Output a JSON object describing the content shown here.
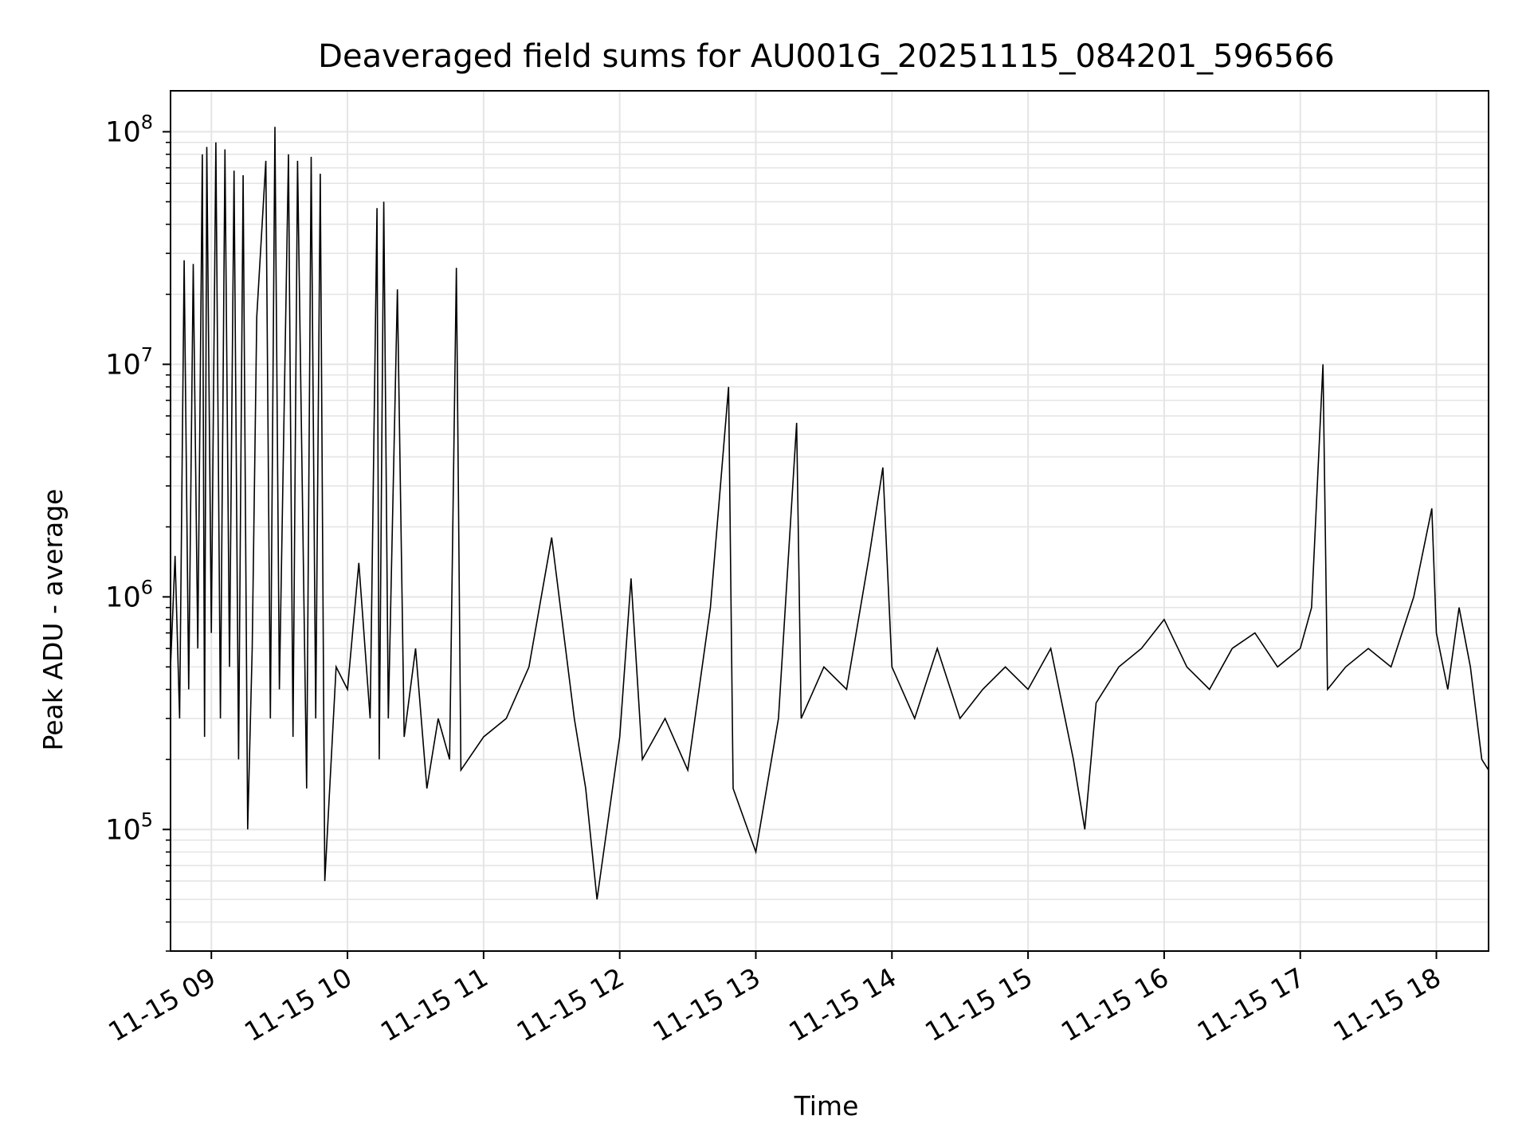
{
  "chart_data": {
    "type": "line",
    "title": "Deaveraged field sums for AU001G_20251115_084201_596566",
    "xlabel": "Time",
    "ylabel": "Peak ADU - average",
    "yscale": "log",
    "ylim": [
      30000,
      150000000
    ],
    "xlim": [
      "2025-11-15 08:42",
      "2025-11-15 18:23"
    ],
    "grid": true,
    "line_color": "#000000",
    "grid_color": "#e5e5e5",
    "x_ticks": [
      {
        "value": "2025-11-15 09:00",
        "label": "11-15 09"
      },
      {
        "value": "2025-11-15 10:00",
        "label": "11-15 10"
      },
      {
        "value": "2025-11-15 11:00",
        "label": "11-15 11"
      },
      {
        "value": "2025-11-15 12:00",
        "label": "11-15 12"
      },
      {
        "value": "2025-11-15 13:00",
        "label": "11-15 13"
      },
      {
        "value": "2025-11-15 14:00",
        "label": "11-15 14"
      },
      {
        "value": "2025-11-15 15:00",
        "label": "11-15 15"
      },
      {
        "value": "2025-11-15 16:00",
        "label": "11-15 16"
      },
      {
        "value": "2025-11-15 17:00",
        "label": "11-15 17"
      },
      {
        "value": "2025-11-15 18:00",
        "label": "11-15 18"
      }
    ],
    "y_ticks": [
      {
        "value": 100000,
        "base": "10",
        "exp": "5"
      },
      {
        "value": 1000000,
        "base": "10",
        "exp": "6"
      },
      {
        "value": 10000000,
        "base": "10",
        "exp": "7"
      },
      {
        "value": 100000000,
        "base": "10",
        "exp": "8"
      }
    ],
    "series": [
      {
        "points": [
          [
            "2025-11-15 08:42",
            500000
          ],
          [
            "2025-11-15 08:44",
            1500000
          ],
          [
            "2025-11-15 08:46",
            300000
          ],
          [
            "2025-11-15 08:48",
            28000000
          ],
          [
            "2025-11-15 08:50",
            400000
          ],
          [
            "2025-11-15 08:52",
            27000000
          ],
          [
            "2025-11-15 08:54",
            600000
          ],
          [
            "2025-11-15 08:56",
            80000000
          ],
          [
            "2025-11-15 08:57",
            250000
          ],
          [
            "2025-11-15 08:58",
            86000000
          ],
          [
            "2025-11-15 09:00",
            700000
          ],
          [
            "2025-11-15 09:02",
            90000000
          ],
          [
            "2025-11-15 09:04",
            300000
          ],
          [
            "2025-11-15 09:06",
            84000000
          ],
          [
            "2025-11-15 09:08",
            500000
          ],
          [
            "2025-11-15 09:10",
            68000000
          ],
          [
            "2025-11-15 09:12",
            200000
          ],
          [
            "2025-11-15 09:14",
            65000000
          ],
          [
            "2025-11-15 09:16",
            100000
          ],
          [
            "2025-11-15 09:18",
            600000
          ],
          [
            "2025-11-15 09:20",
            16000000
          ],
          [
            "2025-11-15 09:24",
            75000000
          ],
          [
            "2025-11-15 09:26",
            300000
          ],
          [
            "2025-11-15 09:28",
            105000000
          ],
          [
            "2025-11-15 09:30",
            400000
          ],
          [
            "2025-11-15 09:34",
            80000000
          ],
          [
            "2025-11-15 09:36",
            250000
          ],
          [
            "2025-11-15 09:38",
            75000000
          ],
          [
            "2025-11-15 09:42",
            150000
          ],
          [
            "2025-11-15 09:44",
            78000000
          ],
          [
            "2025-11-15 09:46",
            300000
          ],
          [
            "2025-11-15 09:48",
            66000000
          ],
          [
            "2025-11-15 09:50",
            60000
          ],
          [
            "2025-11-15 09:55",
            500000
          ],
          [
            "2025-11-15 10:00",
            400000
          ],
          [
            "2025-11-15 10:05",
            1400000
          ],
          [
            "2025-11-15 10:10",
            300000
          ],
          [
            "2025-11-15 10:13",
            47000000
          ],
          [
            "2025-11-15 10:14",
            200000
          ],
          [
            "2025-11-15 10:16",
            50000000
          ],
          [
            "2025-11-15 10:18",
            300000
          ],
          [
            "2025-11-15 10:22",
            21000000
          ],
          [
            "2025-11-15 10:25",
            250000
          ],
          [
            "2025-11-15 10:30",
            600000
          ],
          [
            "2025-11-15 10:35",
            150000
          ],
          [
            "2025-11-15 10:40",
            300000
          ],
          [
            "2025-11-15 10:45",
            200000
          ],
          [
            "2025-11-15 10:48",
            26000000
          ],
          [
            "2025-11-15 10:50",
            180000
          ],
          [
            "2025-11-15 11:00",
            250000
          ],
          [
            "2025-11-15 11:10",
            300000
          ],
          [
            "2025-11-15 11:20",
            500000
          ],
          [
            "2025-11-15 11:30",
            1800000
          ],
          [
            "2025-11-15 11:40",
            300000
          ],
          [
            "2025-11-15 11:45",
            150000
          ],
          [
            "2025-11-15 11:50",
            50000
          ],
          [
            "2025-11-15 12:00",
            250000
          ],
          [
            "2025-11-15 12:05",
            1200000
          ],
          [
            "2025-11-15 12:10",
            200000
          ],
          [
            "2025-11-15 12:20",
            300000
          ],
          [
            "2025-11-15 12:30",
            180000
          ],
          [
            "2025-11-15 12:40",
            900000
          ],
          [
            "2025-11-15 12:48",
            8000000
          ],
          [
            "2025-11-15 12:50",
            150000
          ],
          [
            "2025-11-15 13:00",
            80000
          ],
          [
            "2025-11-15 13:10",
            300000
          ],
          [
            "2025-11-15 13:18",
            5600000
          ],
          [
            "2025-11-15 13:20",
            300000
          ],
          [
            "2025-11-15 13:30",
            500000
          ],
          [
            "2025-11-15 13:40",
            400000
          ],
          [
            "2025-11-15 13:50",
            1500000
          ],
          [
            "2025-11-15 13:56",
            3600000
          ],
          [
            "2025-11-15 14:00",
            500000
          ],
          [
            "2025-11-15 14:10",
            300000
          ],
          [
            "2025-11-15 14:20",
            600000
          ],
          [
            "2025-11-15 14:30",
            300000
          ],
          [
            "2025-11-15 14:40",
            400000
          ],
          [
            "2025-11-15 14:50",
            500000
          ],
          [
            "2025-11-15 15:00",
            400000
          ],
          [
            "2025-11-15 15:10",
            600000
          ],
          [
            "2025-11-15 15:20",
            200000
          ],
          [
            "2025-11-15 15:25",
            100000
          ],
          [
            "2025-11-15 15:30",
            350000
          ],
          [
            "2025-11-15 15:40",
            500000
          ],
          [
            "2025-11-15 15:50",
            600000
          ],
          [
            "2025-11-15 16:00",
            800000
          ],
          [
            "2025-11-15 16:10",
            500000
          ],
          [
            "2025-11-15 16:20",
            400000
          ],
          [
            "2025-11-15 16:30",
            600000
          ],
          [
            "2025-11-15 16:40",
            700000
          ],
          [
            "2025-11-15 16:50",
            500000
          ],
          [
            "2025-11-15 17:00",
            600000
          ],
          [
            "2025-11-15 17:05",
            900000
          ],
          [
            "2025-11-15 17:10",
            10000000
          ],
          [
            "2025-11-15 17:12",
            400000
          ],
          [
            "2025-11-15 17:20",
            500000
          ],
          [
            "2025-11-15 17:30",
            600000
          ],
          [
            "2025-11-15 17:40",
            500000
          ],
          [
            "2025-11-15 17:50",
            1000000
          ],
          [
            "2025-11-15 17:58",
            2400000
          ],
          [
            "2025-11-15 18:00",
            700000
          ],
          [
            "2025-11-15 18:05",
            400000
          ],
          [
            "2025-11-15 18:10",
            900000
          ],
          [
            "2025-11-15 18:15",
            500000
          ],
          [
            "2025-11-15 18:20",
            200000
          ],
          [
            "2025-11-15 18:23",
            180000
          ]
        ]
      }
    ]
  }
}
